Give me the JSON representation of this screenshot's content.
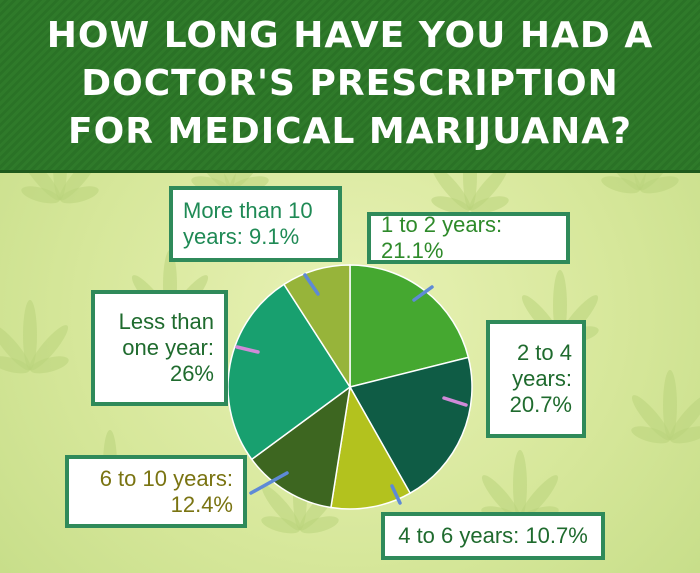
{
  "title_lines": [
    "HOW LONG HAVE YOU HAD A",
    "DOCTOR'S PRESCRIPTION",
    "FOR MEDICAL MARIJUANA?"
  ],
  "colors": {
    "title_band": "#2f7a2a",
    "background": "#d6e79a",
    "leaf": "#b9d47c",
    "box_border": "#2f8a5a"
  },
  "chart_data": {
    "type": "pie",
    "title": "HOW LONG HAVE YOU HAD A DOCTOR'S PRESCRIPTION FOR MEDICAL MARIJUANA?",
    "slices": [
      {
        "label": "1 to 2 years: 21.1%",
        "value": 21.1,
        "color": "#45a830",
        "text_color": "#2e8a2a",
        "leader_color": "#5e8ad6"
      },
      {
        "label": "2 to 4 years: 20.7%",
        "value": 20.7,
        "color": "#0f5c45",
        "text_color": "#1f6b2e",
        "leader_color": "#d08ad8"
      },
      {
        "label": "4 to 6 years: 10.7%",
        "value": 10.7,
        "color": "#b3c21e",
        "text_color": "#1f6b2e",
        "leader_color": "#5e8ad6"
      },
      {
        "label": "6 to 10 years: 12.4%",
        "value": 12.4,
        "color": "#3d6620",
        "text_color": "#7a7412",
        "leader_color": "#5e8ad6"
      },
      {
        "label": "Less than one year: 26%",
        "value": 26,
        "color": "#18a06f",
        "text_color": "#1f6b2e",
        "leader_color": "#d08ad8"
      },
      {
        "label": "More than 10 years: 9.1%",
        "value": 9.1,
        "color": "#97b43a",
        "text_color": "#1f8a55",
        "leader_color": "#5e8ad6"
      }
    ],
    "label_lines": [
      [
        "1 to 2 years: 21.1%"
      ],
      [
        "2 to 4",
        "years:",
        "20.7%"
      ],
      [
        "4 to 6 years: 10.7%"
      ],
      [
        "6 to 10 years:",
        "12.4%"
      ],
      [
        "Less than",
        "one year:",
        "26%"
      ],
      [
        "More than 10",
        "years: 9.1%"
      ]
    ]
  }
}
